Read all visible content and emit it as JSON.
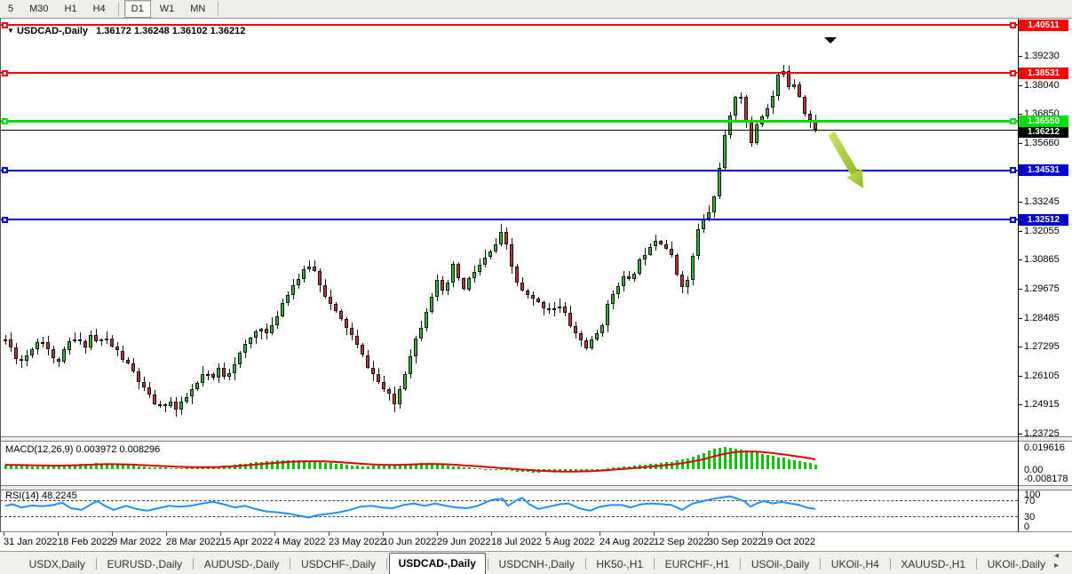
{
  "toolbar": {
    "timeframes": [
      "5",
      "M30",
      "H1",
      "H4",
      "D1",
      "W1",
      "MN"
    ],
    "active_timeframe": "D1"
  },
  "chart_header": {
    "marker_icon": "▼",
    "symbol_label": "USDCAD-,Daily",
    "ohlc_text": "1.36172 1.36248 1.36102 1.36212"
  },
  "indicators": {
    "macd": {
      "label": "MACD(12,26,9) 0.003972 0.008296",
      "axis_labels": [
        "0.019616",
        "0.00",
        "-0.008178"
      ]
    },
    "rsi": {
      "label": "RSI(14) 48.2245",
      "axis_labels": [
        "100",
        "70",
        "30",
        "0"
      ],
      "dashed_levels": [
        70,
        30
      ]
    }
  },
  "tabs": {
    "items": [
      "USDX,Daily",
      "EURUSD-,Daily",
      "AUDUSD-,Daily",
      "USDCHF-,Daily",
      "USDCAD-,Daily",
      "USDCNH-,Daily",
      "HK50-,H1",
      "EURCHF-,H1",
      "USOil-,Daily",
      "UKOil-,H4",
      "XAUUSD-,H1",
      "UKOil-,Daily"
    ],
    "active_index": 4,
    "scroll_arrows": "◂ ▸"
  },
  "colors": {
    "bull": "#2eb62e",
    "bear": "#bd3434",
    "wick": "#111111",
    "resistance": "#ff0000",
    "support_green": "#00dd00",
    "support_blue": "#0000cc",
    "price_line": "#000000",
    "macd_hist": "#00c400",
    "macd_signal": "#e00000",
    "rsi_line": "#1e90ff",
    "arrow": "#a6cc2f"
  },
  "chart_data": {
    "type": "candlestick",
    "symbol": "USDCAD",
    "timeframe": "Daily",
    "ohlc_display": {
      "open": "1.36172",
      "high": "1.36248",
      "low": "1.36102",
      "close": "1.36212"
    },
    "ylim": [
      1.2365,
      1.4073
    ],
    "y_axis_ticks": [
      "1.39230",
      "1.38040",
      "1.36850",
      "1.35660",
      "1.33245",
      "1.32055",
      "1.30865",
      "1.29675",
      "1.28485",
      "1.27295",
      "1.26105",
      "1.24915",
      "1.23725"
    ],
    "x_axis_dates": [
      "31 Jan 2022",
      "18 Feb 2022",
      "9 Mar 2022",
      "28 Mar 2022",
      "15 Apr 2022",
      "4 May 2022",
      "23 May 2022",
      "10 Jun 2022",
      "29 Jun 2022",
      "18 Jul 2022",
      "5 Aug 2022",
      "24 Aug 2022",
      "12 Sep 2022",
      "30 Sep 2022",
      "19 Oct 2022"
    ],
    "levels": [
      {
        "price": 1.40511,
        "label": "1.40511",
        "color": "#ff0000",
        "thickness": 2,
        "type": "resistance"
      },
      {
        "price": 1.38531,
        "label": "1.38531",
        "color": "#ff0000",
        "thickness": 2,
        "type": "resistance"
      },
      {
        "price": 1.3655,
        "label": "1.36550",
        "color": "#00dd00",
        "thickness": 3,
        "type": "support"
      },
      {
        "price": 1.34531,
        "label": "1.34531",
        "color": "#0000cc",
        "thickness": 2,
        "type": "support"
      },
      {
        "price": 1.32512,
        "label": "1.32512",
        "color": "#0000cc",
        "thickness": 2,
        "type": "support"
      }
    ],
    "current_price": {
      "value": 1.36212,
      "label": "1.36212"
    },
    "candle_start_x": 6,
    "candle_end_x": 918,
    "candle_spacing": 6,
    "spike_high": {
      "above_price": 1.3895,
      "wick_to": 1.3977
    },
    "render_seed": 11,
    "price_path": [
      [
        6,
        1.276
      ],
      [
        14,
        1.2712
      ],
      [
        22,
        1.2664
      ],
      [
        30,
        1.2696
      ],
      [
        38,
        1.2736
      ],
      [
        46,
        1.2768
      ],
      [
        54,
        1.2722
      ],
      [
        62,
        1.2658
      ],
      [
        70,
        1.2692
      ],
      [
        78,
        1.2748
      ],
      [
        86,
        1.2762
      ],
      [
        94,
        1.2726
      ],
      [
        102,
        1.2778
      ],
      [
        110,
        1.2742
      ],
      [
        118,
        1.2768
      ],
      [
        126,
        1.2732
      ],
      [
        134,
        1.27
      ],
      [
        142,
        1.2664
      ],
      [
        150,
        1.2624
      ],
      [
        158,
        1.2576
      ],
      [
        166,
        1.2532
      ],
      [
        174,
        1.2498
      ],
      [
        182,
        1.2478
      ],
      [
        190,
        1.2512
      ],
      [
        198,
        1.2468
      ],
      [
        206,
        1.2502
      ],
      [
        214,
        1.2542
      ],
      [
        222,
        1.2576
      ],
      [
        230,
        1.2628
      ],
      [
        238,
        1.2586
      ],
      [
        246,
        1.2638
      ],
      [
        254,
        1.2606
      ],
      [
        262,
        1.2654
      ],
      [
        270,
        1.27
      ],
      [
        278,
        1.2742
      ],
      [
        286,
        1.2786
      ],
      [
        294,
        1.2812
      ],
      [
        302,
        1.2772
      ],
      [
        310,
        1.2846
      ],
      [
        318,
        1.2912
      ],
      [
        326,
        1.2964
      ],
      [
        334,
        1.3004
      ],
      [
        342,
        1.3038
      ],
      [
        350,
        1.3076
      ],
      [
        356,
        1.3022
      ],
      [
        364,
        1.2958
      ],
      [
        372,
        1.2902
      ],
      [
        380,
        1.2856
      ],
      [
        388,
        1.2822
      ],
      [
        396,
        1.2772
      ],
      [
        404,
        1.2716
      ],
      [
        412,
        1.2662
      ],
      [
        420,
        1.2614
      ],
      [
        428,
        1.2572
      ],
      [
        436,
        1.2536
      ],
      [
        444,
        1.2492
      ],
      [
        450,
        1.2556
      ],
      [
        456,
        1.2628
      ],
      [
        462,
        1.27
      ],
      [
        468,
        1.2762
      ],
      [
        474,
        1.2818
      ],
      [
        480,
        1.2882
      ],
      [
        486,
        1.2942
      ],
      [
        492,
        1.2996
      ],
      [
        498,
        1.2948
      ],
      [
        504,
        1.2992
      ],
      [
        510,
        1.3058
      ],
      [
        516,
        1.3012
      ],
      [
        522,
        1.2962
      ],
      [
        528,
        1.3006
      ],
      [
        536,
        1.3048
      ],
      [
        544,
        1.3082
      ],
      [
        552,
        1.3116
      ],
      [
        560,
        1.3162
      ],
      [
        566,
        1.3208
      ],
      [
        572,
        1.3108
      ],
      [
        580,
        1.3006
      ],
      [
        588,
        1.2956
      ],
      [
        596,
        1.293
      ],
      [
        604,
        1.2912
      ],
      [
        612,
        1.2896
      ],
      [
        620,
        1.288
      ],
      [
        628,
        1.2902
      ],
      [
        636,
        1.2862
      ],
      [
        644,
        1.2806
      ],
      [
        652,
        1.2762
      ],
      [
        660,
        1.2728
      ],
      [
        668,
        1.2758
      ],
      [
        676,
        1.2806
      ],
      [
        684,
        1.2896
      ],
      [
        692,
        1.2966
      ],
      [
        700,
        1.3016
      ],
      [
        708,
        1.2996
      ],
      [
        716,
        1.3052
      ],
      [
        724,
        1.3106
      ],
      [
        732,
        1.3152
      ],
      [
        740,
        1.3176
      ],
      [
        748,
        1.3148
      ],
      [
        756,
        1.3096
      ],
      [
        764,
        1.3006
      ],
      [
        772,
        1.2962
      ],
      [
        780,
        1.3102
      ],
      [
        786,
        1.3208
      ],
      [
        792,
        1.3252
      ],
      [
        798,
        1.3282
      ],
      [
        804,
        1.3342
      ],
      [
        810,
        1.3472
      ],
      [
        816,
        1.359
      ],
      [
        822,
        1.3668
      ],
      [
        828,
        1.3762
      ],
      [
        832,
        1.3802
      ],
      [
        836,
        1.3724
      ],
      [
        840,
        1.3646
      ],
      [
        845,
        1.3556
      ],
      [
        850,
        1.3612
      ],
      [
        855,
        1.3696
      ],
      [
        860,
        1.3672
      ],
      [
        865,
        1.3716
      ],
      [
        870,
        1.3758
      ],
      [
        875,
        1.3822
      ],
      [
        880,
        1.3896
      ],
      [
        885,
        1.3836
      ],
      [
        890,
        1.3784
      ],
      [
        895,
        1.3822
      ],
      [
        900,
        1.3762
      ],
      [
        905,
        1.3702
      ],
      [
        910,
        1.3678
      ],
      [
        915,
        1.3632
      ],
      [
        918,
        1.3621
      ]
    ],
    "macd_ylim": [
      -0.01334,
      0.02434
    ],
    "macd_path": [
      [
        6,
        0.0038
      ],
      [
        30,
        0.003
      ],
      [
        60,
        0.0028
      ],
      [
        90,
        0.0046
      ],
      [
        110,
        0.0052
      ],
      [
        130,
        0.0042
      ],
      [
        150,
        0.003
      ],
      [
        170,
        0.002
      ],
      [
        190,
        0.0013
      ],
      [
        210,
        0.0011
      ],
      [
        230,
        0.0016
      ],
      [
        250,
        0.0028
      ],
      [
        270,
        0.0046
      ],
      [
        290,
        0.0064
      ],
      [
        310,
        0.0076
      ],
      [
        330,
        0.008
      ],
      [
        350,
        0.0075
      ],
      [
        370,
        0.0058
      ],
      [
        390,
        0.0042
      ],
      [
        410,
        0.0028
      ],
      [
        430,
        0.003
      ],
      [
        450,
        0.0044
      ],
      [
        465,
        0.0054
      ],
      [
        480,
        0.005
      ],
      [
        500,
        0.0036
      ],
      [
        520,
        0.002
      ],
      [
        540,
        0.0008
      ],
      [
        560,
        -0.0006
      ],
      [
        580,
        -0.0018
      ],
      [
        600,
        -0.0026
      ],
      [
        620,
        -0.0029
      ],
      [
        640,
        -0.0024
      ],
      [
        660,
        -0.0012
      ],
      [
        680,
        0.0006
      ],
      [
        700,
        0.002
      ],
      [
        720,
        0.0036
      ],
      [
        740,
        0.0052
      ],
      [
        760,
        0.0072
      ],
      [
        775,
        0.0098
      ],
      [
        790,
        0.0138
      ],
      [
        800,
        0.017
      ],
      [
        808,
        0.019
      ],
      [
        814,
        0.0196
      ],
      [
        822,
        0.019
      ],
      [
        832,
        0.0178
      ],
      [
        842,
        0.016
      ],
      [
        852,
        0.0146
      ],
      [
        862,
        0.0128
      ],
      [
        872,
        0.0112
      ],
      [
        882,
        0.0098
      ],
      [
        892,
        0.0084
      ],
      [
        902,
        0.007
      ],
      [
        910,
        0.0056
      ],
      [
        918,
        0.004
      ]
    ],
    "rsi_ylim": [
      -5.5,
      99
    ],
    "rsi_path": [
      [
        6,
        56
      ],
      [
        14,
        60
      ],
      [
        24,
        52
      ],
      [
        36,
        57
      ],
      [
        48,
        55
      ],
      [
        60,
        58
      ],
      [
        70,
        64
      ],
      [
        80,
        50
      ],
      [
        92,
        46
      ],
      [
        104,
        62
      ],
      [
        110,
        68
      ],
      [
        118,
        56
      ],
      [
        128,
        46
      ],
      [
        142,
        56
      ],
      [
        154,
        48
      ],
      [
        166,
        44
      ],
      [
        178,
        50
      ],
      [
        190,
        56
      ],
      [
        202,
        54
      ],
      [
        214,
        56
      ],
      [
        228,
        62
      ],
      [
        240,
        66
      ],
      [
        252,
        60
      ],
      [
        264,
        52
      ],
      [
        276,
        56
      ],
      [
        288,
        48
      ],
      [
        300,
        42
      ],
      [
        312,
        40
      ],
      [
        326,
        36
      ],
      [
        340,
        30
      ],
      [
        348,
        27
      ],
      [
        358,
        33
      ],
      [
        370,
        36
      ],
      [
        382,
        40
      ],
      [
        394,
        46
      ],
      [
        406,
        54
      ],
      [
        418,
        56
      ],
      [
        430,
        52
      ],
      [
        442,
        50
      ],
      [
        454,
        58
      ],
      [
        466,
        62
      ],
      [
        478,
        56
      ],
      [
        490,
        62
      ],
      [
        502,
        56
      ],
      [
        514,
        52
      ],
      [
        526,
        50
      ],
      [
        538,
        56
      ],
      [
        550,
        68
      ],
      [
        558,
        72
      ],
      [
        566,
        74
      ],
      [
        572,
        56
      ],
      [
        580,
        68
      ],
      [
        588,
        76
      ],
      [
        596,
        60
      ],
      [
        606,
        48
      ],
      [
        618,
        54
      ],
      [
        630,
        60
      ],
      [
        640,
        62
      ],
      [
        652,
        50
      ],
      [
        664,
        44
      ],
      [
        676,
        54
      ],
      [
        688,
        58
      ],
      [
        700,
        58
      ],
      [
        710,
        52
      ],
      [
        722,
        60
      ],
      [
        734,
        62
      ],
      [
        746,
        60
      ],
      [
        756,
        58
      ],
      [
        768,
        46
      ],
      [
        780,
        62
      ],
      [
        792,
        68
      ],
      [
        804,
        74
      ],
      [
        816,
        78
      ],
      [
        822,
        80
      ],
      [
        830,
        74
      ],
      [
        838,
        68
      ],
      [
        845,
        54
      ],
      [
        852,
        62
      ],
      [
        860,
        68
      ],
      [
        870,
        62
      ],
      [
        880,
        66
      ],
      [
        890,
        62
      ],
      [
        900,
        58
      ],
      [
        908,
        52
      ],
      [
        918,
        48.2
      ]
    ],
    "annotations": [
      {
        "type": "arrow-down-right",
        "from": [
          936,
          129
        ],
        "to": [
          972,
          191
        ]
      },
      {
        "type": "marker-down-triangle",
        "x": 928,
        "y": 21
      }
    ]
  }
}
